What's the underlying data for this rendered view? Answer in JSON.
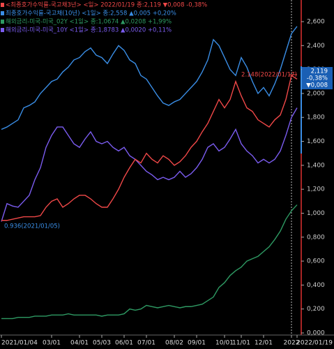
{
  "chart_data": {
    "type": "line",
    "categories": [
      "2021/01/04",
      null,
      null,
      null,
      null,
      null,
      null,
      null,
      null,
      "03/01",
      null,
      null,
      null,
      null,
      "04/01",
      null,
      null,
      null,
      "05/03",
      null,
      null,
      null,
      "06/01",
      null,
      null,
      null,
      "07/01",
      null,
      null,
      null,
      null,
      "08/02",
      null,
      null,
      null,
      "09/01",
      null,
      null,
      null,
      null,
      "10/01",
      null,
      null,
      "11/01",
      null,
      null,
      null,
      "12/01",
      null,
      null,
      null,
      null,
      "2022",
      "2022/01/19"
    ],
    "series": [
      {
        "name": "<최종호가수익률-국고채3년> <일> 2022/01/19 종:2,119 ▼0,008 -0,38%",
        "color": "#f04848",
        "values": [
          0.94,
          0.94,
          0.95,
          0.96,
          0.97,
          0.97,
          0.97,
          0.98,
          1.05,
          1.1,
          1.12,
          1.05,
          1.08,
          1.12,
          1.15,
          1.15,
          1.12,
          1.08,
          1.05,
          1.05,
          1.12,
          1.2,
          1.3,
          1.38,
          1.45,
          1.42,
          1.5,
          1.45,
          1.42,
          1.48,
          1.45,
          1.4,
          1.43,
          1.48,
          1.55,
          1.6,
          1.68,
          1.75,
          1.85,
          1.95,
          1.88,
          1.95,
          2.1,
          1.98,
          1.88,
          1.85,
          1.78,
          1.75,
          1.72,
          1.78,
          1.82,
          1.95,
          2.15,
          2.12
        ]
      },
      {
        "name": "최종호가수익률-국고채(10년) <1일> 종:2,558 ▲0,005 +0,20%",
        "color": "#3a8ee6",
        "values": [
          1.7,
          1.72,
          1.75,
          1.78,
          1.88,
          1.9,
          1.93,
          2.0,
          2.05,
          2.1,
          2.12,
          2.18,
          2.22,
          2.28,
          2.3,
          2.35,
          2.38,
          2.32,
          2.3,
          2.25,
          2.33,
          2.4,
          2.36,
          2.28,
          2.25,
          2.15,
          2.12,
          2.05,
          1.98,
          1.92,
          1.9,
          1.93,
          1.95,
          2.0,
          2.05,
          2.1,
          2.18,
          2.28,
          2.45,
          2.4,
          2.3,
          2.2,
          2.15,
          2.3,
          2.22,
          2.1,
          2.0,
          2.05,
          1.98,
          2.08,
          2.2,
          2.35,
          2.5,
          2.56
        ]
      },
      {
        "name": "해외금리-미국-미국_02Y <1일> 종:1,0674 ▲0,0208 +1,99%",
        "color": "#2e9a63",
        "values": [
          0.12,
          0.12,
          0.12,
          0.13,
          0.13,
          0.13,
          0.14,
          0.14,
          0.14,
          0.15,
          0.15,
          0.15,
          0.16,
          0.15,
          0.15,
          0.15,
          0.15,
          0.15,
          0.14,
          0.15,
          0.15,
          0.15,
          0.16,
          0.2,
          0.19,
          0.2,
          0.23,
          0.22,
          0.21,
          0.22,
          0.23,
          0.22,
          0.21,
          0.22,
          0.22,
          0.23,
          0.24,
          0.27,
          0.3,
          0.38,
          0.42,
          0.48,
          0.52,
          0.55,
          0.6,
          0.62,
          0.64,
          0.68,
          0.72,
          0.78,
          0.85,
          0.95,
          1.02,
          1.07
        ]
      },
      {
        "name": "해외금리-미국-미국_10Y <1일> 종:1,8783 ▲0,0020 +0,11%",
        "color": "#7b5cf0",
        "values": [
          0.93,
          1.08,
          1.06,
          1.05,
          1.1,
          1.15,
          1.28,
          1.38,
          1.55,
          1.65,
          1.72,
          1.72,
          1.65,
          1.58,
          1.55,
          1.62,
          1.68,
          1.6,
          1.58,
          1.6,
          1.55,
          1.52,
          1.55,
          1.48,
          1.45,
          1.4,
          1.35,
          1.32,
          1.28,
          1.3,
          1.28,
          1.3,
          1.35,
          1.3,
          1.33,
          1.38,
          1.45,
          1.55,
          1.58,
          1.52,
          1.55,
          1.62,
          1.7,
          1.58,
          1.52,
          1.48,
          1.42,
          1.45,
          1.42,
          1.45,
          1.52,
          1.65,
          1.8,
          1.88
        ]
      }
    ],
    "ylim": [
      0,
      2.6
    ],
    "yticks": [
      {
        "value": 0,
        "label": "0,000"
      },
      {
        "value": 0.2,
        "label": "0,200"
      },
      {
        "value": 0.4,
        "label": "0,400"
      },
      {
        "value": 0.6,
        "label": "0,600"
      },
      {
        "value": 0.8,
        "label": "0,800"
      },
      {
        "value": 1.0,
        "label": "1,000"
      },
      {
        "value": 1.2,
        "label": "1,200"
      },
      {
        "value": 1.4,
        "label": "1,400"
      },
      {
        "value": 1.6,
        "label": "1,600"
      },
      {
        "value": 1.8,
        "label": "1,800"
      },
      {
        "value": 2.0,
        "label": "2,000"
      },
      {
        "value": 2.2,
        "label": "2,200"
      },
      {
        "value": 2.4,
        "label": "2,400"
      },
      {
        "value": 2.6,
        "label": "2,600"
      }
    ],
    "annotations": [
      "2.148(2022/01/17)",
      "0.936(2021/01/05)"
    ],
    "current_box": [
      "2,119",
      "-0,38%",
      "▼0,008"
    ]
  }
}
